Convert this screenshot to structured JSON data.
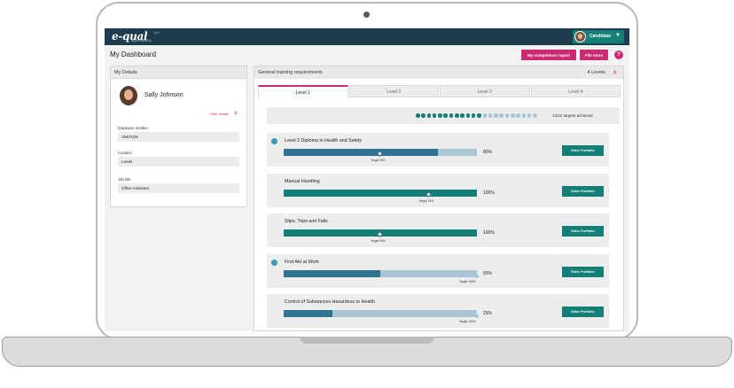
{
  "colors": {
    "header": "#1e3b4e",
    "teal": "#137f77",
    "pink": "#cc2a71",
    "bar_blue": "#2e7390",
    "bar_light": "#a9c6d4"
  },
  "app": {
    "logo": "e-qual",
    "logo_sup": "pro",
    "logo_tag": "apprenticeship"
  },
  "user": {
    "role_label": "Candidate",
    "caret": "▼"
  },
  "dashboard": {
    "title": "My Dashboard",
    "competence_report_label": "My competence report",
    "file_store_label": "File store",
    "help_label": "?"
  },
  "details": {
    "header": "My Details",
    "name": "Sally Johnson",
    "hide_label": "Hide details",
    "fields": [
      {
        "label": "Employee number",
        "value": "A567D29"
      },
      {
        "label": "Location",
        "value": "Leeds"
      },
      {
        "label": "Job title",
        "value": "Office Assistant"
      }
    ]
  },
  "requirements": {
    "header": "General training requirements",
    "levels_label": "4 Levels",
    "tabs": [
      "Level 1",
      "Level 2",
      "Level 3",
      "Level 4"
    ],
    "targets_total": 22,
    "targets_achieved": 12,
    "targets_label": "12/22 targets achieved",
    "button_label": "Enter Portfolio",
    "courses": [
      {
        "title": "Level 2 Diploma in Health and Safety",
        "percent": 80,
        "percent_label": "80%",
        "target": 50,
        "target_label": "Target 50%",
        "marker": true
      },
      {
        "title": "Manual Handling",
        "percent": 100,
        "percent_label": "100%",
        "target": 75,
        "target_label": "Target 75%",
        "marker": false
      },
      {
        "title": "Slips, Trips and Falls",
        "percent": 100,
        "percent_label": "100%",
        "target": 50,
        "target_label": "Target 50%",
        "marker": false
      },
      {
        "title": "First Aid at Work",
        "percent": 50,
        "percent_label": "50%",
        "target": 100,
        "target_label": "Target 100%",
        "marker": true
      },
      {
        "title": "Control of Substances Hazardous to Health",
        "percent": 25,
        "percent_label": "25%",
        "target": 100,
        "target_label": "Target 100%",
        "marker": false
      }
    ]
  }
}
